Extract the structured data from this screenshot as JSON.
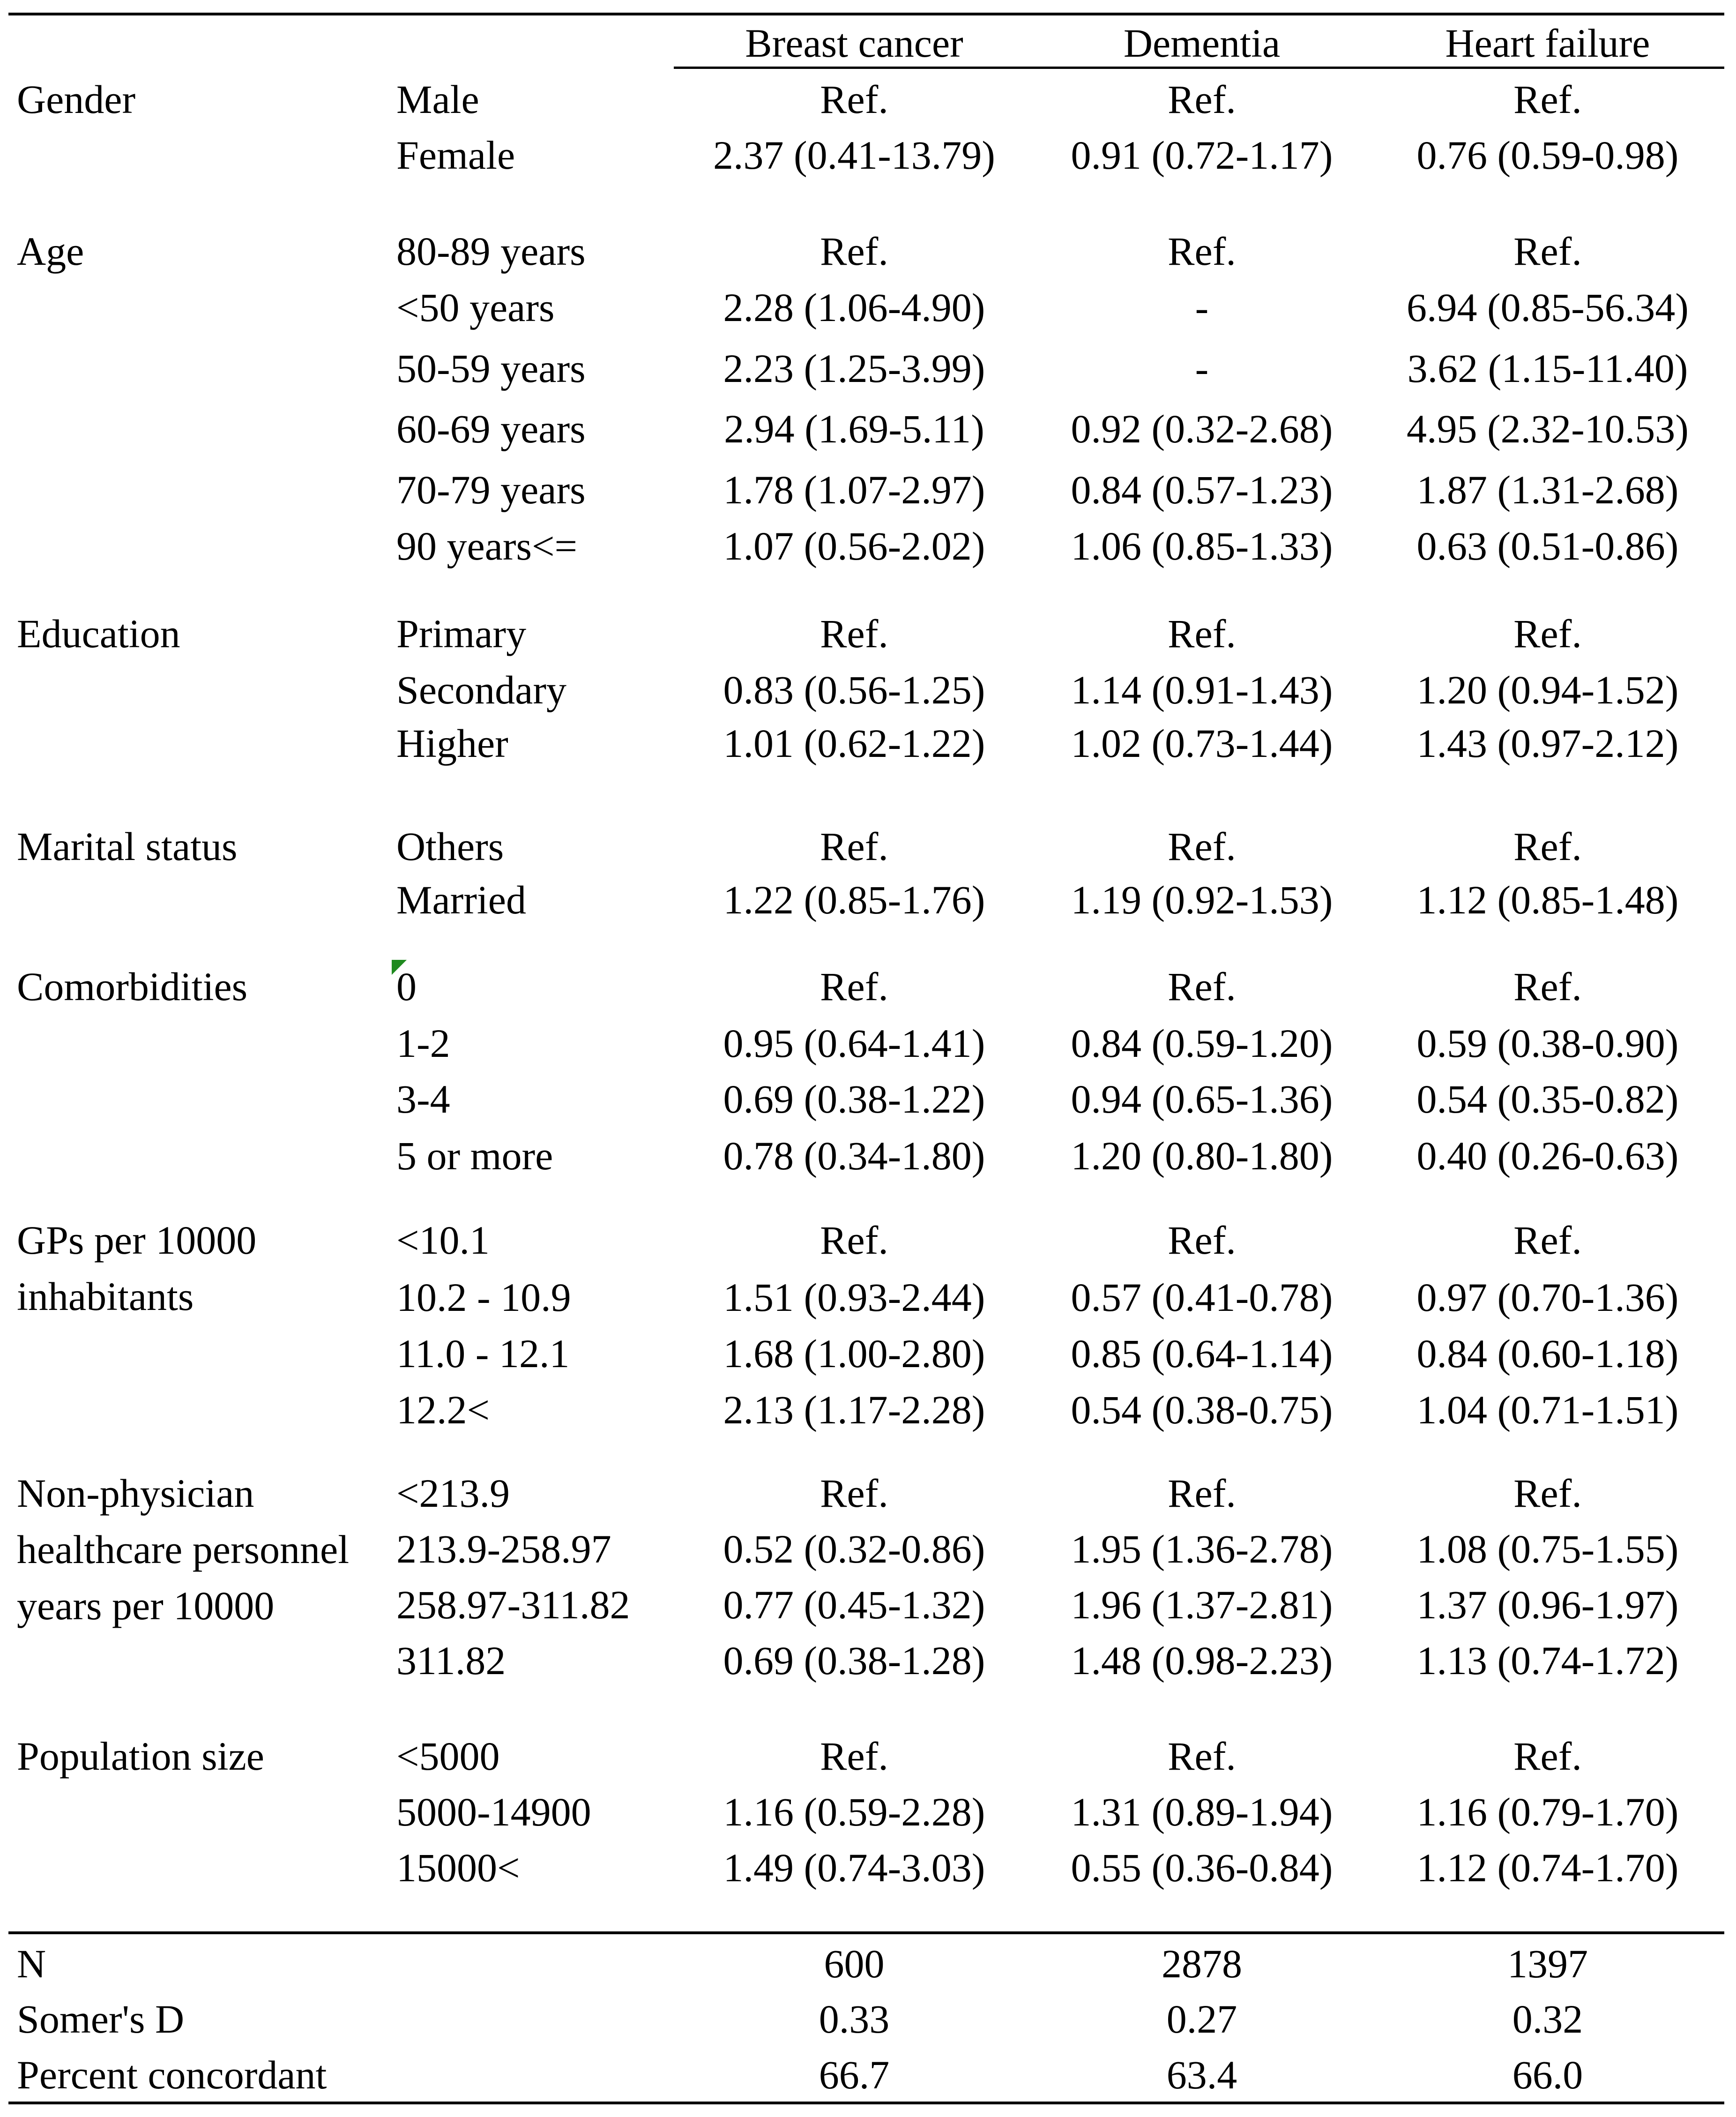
{
  "header": {
    "columns": [
      "Breast cancer",
      "Dementia",
      "Heart failure"
    ]
  },
  "groups": [
    {
      "label_lines": [
        "Gender"
      ],
      "rows": [
        {
          "level": "Male",
          "values": [
            "Ref.",
            "Ref.",
            "Ref."
          ]
        },
        {
          "level": "Female",
          "values": [
            "2.37 (0.41-13.79)",
            "0.91 (0.72-1.17)",
            "0.76 (0.59-0.98)"
          ]
        }
      ]
    },
    {
      "label_lines": [
        "Age"
      ],
      "rows": [
        {
          "level": "80-89 years",
          "values": [
            "Ref.",
            "Ref.",
            "Ref."
          ]
        },
        {
          "level": "<50 years",
          "values": [
            "2.28 (1.06-4.90)",
            "-",
            "6.94 (0.85-56.34)"
          ]
        },
        {
          "level": "50-59 years",
          "values": [
            "2.23 (1.25-3.99)",
            "-",
            "3.62 (1.15-11.40)"
          ]
        },
        {
          "level": "60-69 years",
          "values": [
            "2.94 (1.69-5.11)",
            "0.92 (0.32-2.68)",
            "4.95 (2.32-10.53)"
          ]
        },
        {
          "level": "70-79 years",
          "values": [
            "1.78 (1.07-2.97)",
            "0.84 (0.57-1.23)",
            "1.87 (1.31-2.68)"
          ]
        },
        {
          "level": "90 years<=",
          "values": [
            "1.07 (0.56-2.02)",
            "1.06 (0.85-1.33)",
            "0.63 (0.51-0.86)"
          ]
        }
      ]
    },
    {
      "label_lines": [
        "Education"
      ],
      "rows": [
        {
          "level": "Primary",
          "values": [
            "Ref.",
            "Ref.",
            "Ref."
          ]
        },
        {
          "level": "Secondary",
          "values": [
            "0.83 (0.56-1.25)",
            "1.14 (0.91-1.43)",
            "1.20 (0.94-1.52)"
          ]
        },
        {
          "level": "Higher",
          "values": [
            "1.01 (0.62-1.22)",
            "1.02 (0.73-1.44)",
            "1.43 (0.97-2.12)"
          ]
        }
      ]
    },
    {
      "label_lines": [
        "Marital status"
      ],
      "rows": [
        {
          "level": "Others",
          "values": [
            "Ref.",
            "Ref.",
            "Ref."
          ]
        },
        {
          "level": "Married",
          "values": [
            "1.22 (0.85-1.76)",
            "1.19 (0.92-1.53)",
            "1.12 (0.85-1.48)"
          ]
        }
      ]
    },
    {
      "label_lines": [
        "Comorbidities"
      ],
      "rows": [
        {
          "level": "0",
          "values": [
            "Ref.",
            "Ref.",
            "Ref."
          ]
        },
        {
          "level": "1-2",
          "values": [
            "0.95 (0.64-1.41)",
            "0.84 (0.59-1.20)",
            "0.59 (0.38-0.90)"
          ]
        },
        {
          "level": "3-4",
          "values": [
            "0.69 (0.38-1.22)",
            "0.94 (0.65-1.36)",
            "0.54 (0.35-0.82)"
          ]
        },
        {
          "level": "5 or more",
          "values": [
            "0.78 (0.34-1.80)",
            "1.20 (0.80-1.80)",
            "0.40 (0.26-0.63)"
          ]
        }
      ]
    },
    {
      "label_lines": [
        "GPs per 10000",
        "inhabitants"
      ],
      "rows": [
        {
          "level": "<10.1",
          "values": [
            "Ref.",
            "Ref.",
            "Ref."
          ]
        },
        {
          "level": "10.2 - 10.9",
          "values": [
            "1.51 (0.93-2.44)",
            "0.57 (0.41-0.78)",
            "0.97 (0.70-1.36)"
          ]
        },
        {
          "level": "11.0 - 12.1",
          "values": [
            "1.68 (1.00-2.80)",
            "0.85 (0.64-1.14)",
            "0.84 (0.60-1.18)"
          ]
        },
        {
          "level": "12.2<",
          "values": [
            "2.13 (1.17-2.28)",
            "0.54 (0.38-0.75)",
            "1.04 (0.71-1.51)"
          ]
        }
      ]
    },
    {
      "label_lines": [
        "Non-physician",
        "healthcare personnel",
        "years per 10000"
      ],
      "rows": [
        {
          "level": "<213.9",
          "values": [
            "Ref.",
            "Ref.",
            "Ref."
          ]
        },
        {
          "level": "213.9-258.97",
          "values": [
            "0.52 (0.32-0.86)",
            "1.95 (1.36-2.78)",
            "1.08 (0.75-1.55)"
          ]
        },
        {
          "level": "258.97-311.82",
          "values": [
            "0.77 (0.45-1.32)",
            "1.96 (1.37-2.81)",
            "1.37 (0.96-1.97)"
          ]
        },
        {
          "level": "311.82",
          "values": [
            "0.69 (0.38-1.28)",
            "1.48 (0.98-2.23)",
            "1.13 (0.74-1.72)"
          ]
        }
      ]
    },
    {
      "label_lines": [
        "Population size"
      ],
      "rows": [
        {
          "level": "<5000",
          "values": [
            "Ref.",
            "Ref.",
            "Ref."
          ]
        },
        {
          "level": "5000-14900",
          "values": [
            "1.16 (0.59-2.28)",
            "1.31 (0.89-1.94)",
            "1.16 (0.79-1.70)"
          ]
        },
        {
          "level": "15000<",
          "values": [
            "1.49 (0.74-3.03)",
            "0.55 (0.36-0.84)",
            "1.12 (0.74-1.70)"
          ]
        }
      ]
    }
  ],
  "footer": [
    {
      "label": "N",
      "values": [
        "600",
        "2878",
        "1397"
      ]
    },
    {
      "label": "Somer's D",
      "values": [
        "0.33",
        "0.27",
        "0.32"
      ]
    },
    {
      "label": "Percent concordant",
      "values": [
        "66.7",
        "63.4",
        "66.0"
      ]
    }
  ]
}
